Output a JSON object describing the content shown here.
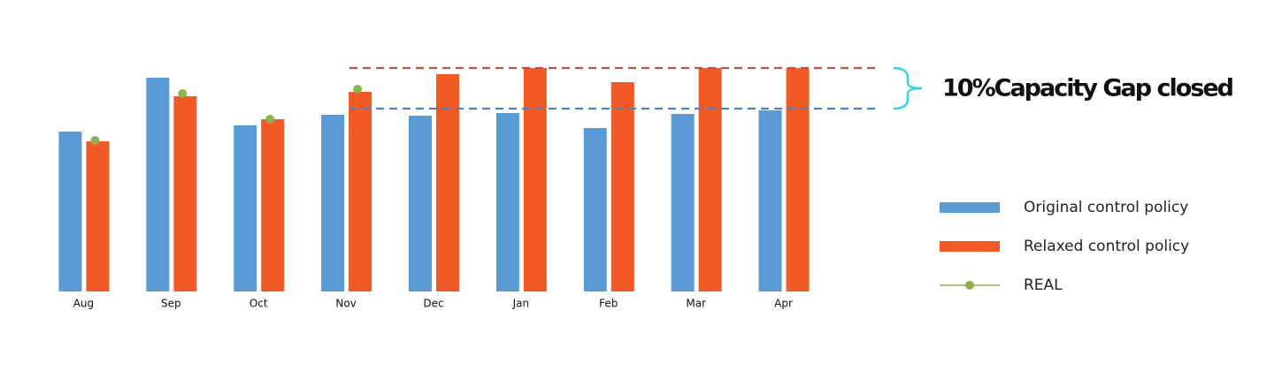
{
  "chart_data": {
    "type": "bar",
    "categories": [
      "Aug",
      "Sep",
      "Oct",
      "Nov",
      "Dec",
      "Jan",
      "Feb",
      "Mar",
      "Apr"
    ],
    "series": [
      {
        "name": "Original control policy",
        "color": "#5b9bd5",
        "values": [
          181,
          242,
          188,
          200,
          199,
          202,
          185,
          201,
          205
        ]
      },
      {
        "name": "Relaxed control policy",
        "color": "#f15a24",
        "values": [
          170,
          221,
          195,
          226,
          246,
          253,
          237,
          253,
          253
        ]
      },
      {
        "name": "REAL",
        "color": "#8fb14f",
        "values": [
          171,
          224,
          195,
          229,
          null,
          null,
          null,
          null,
          null
        ]
      }
    ],
    "ylim": [
      0,
      253
    ],
    "reference_lines": [
      {
        "value": 253,
        "color": "#c0504d"
      },
      {
        "value": 207,
        "color": "#4f81bd"
      }
    ],
    "annotation": "10%Capacity Gap closed"
  }
}
